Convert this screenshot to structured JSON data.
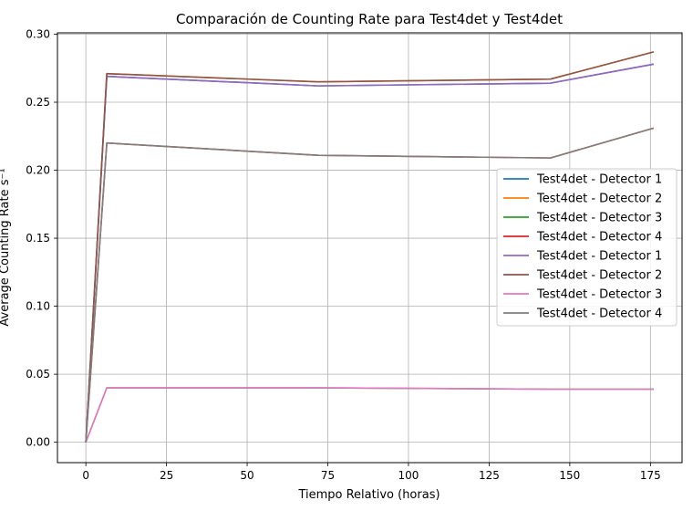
{
  "chart_data": {
    "type": "line",
    "title": "Comparación de Counting Rate para Test4det y Test4det",
    "xlabel": "Tiempo Relativo (horas)",
    "ylabel": "Average Counting Rate s⁻¹",
    "xlim": [
      -8.8,
      184.8
    ],
    "ylim": [
      -0.015,
      0.301
    ],
    "xticks": [
      0,
      25,
      50,
      75,
      100,
      125,
      150,
      175
    ],
    "xtick_labels": [
      "0",
      "25",
      "50",
      "75",
      "100",
      "125",
      "150",
      "175"
    ],
    "yticks": [
      0.0,
      0.05,
      0.1,
      0.15,
      0.2,
      0.25,
      0.3
    ],
    "ytick_labels": [
      "0.00",
      "0.05",
      "0.10",
      "0.15",
      "0.20",
      "0.25",
      "0.30"
    ],
    "grid": true,
    "legend_position": "center-right",
    "x": [
      0,
      6.5,
      72,
      144,
      176
    ],
    "series": [
      {
        "name": "Test4det - Detector 1",
        "color": "#1f77b4",
        "values": [
          0.0,
          0.269,
          0.262,
          0.264,
          0.278
        ]
      },
      {
        "name": "Test4det - Detector 2",
        "color": "#ff7f0e",
        "values": [
          0.0,
          0.271,
          0.265,
          0.267,
          0.287
        ]
      },
      {
        "name": "Test4det - Detector 3",
        "color": "#2ca02c",
        "values": [
          0.0,
          0.04,
          0.04,
          0.039,
          0.039
        ]
      },
      {
        "name": "Test4det - Detector 4",
        "color": "#d62728",
        "values": [
          0.0,
          0.22,
          0.211,
          0.209,
          0.231
        ]
      },
      {
        "name": "Test4det - Detector 1",
        "color": "#9467bd",
        "values": [
          0.0,
          0.269,
          0.262,
          0.264,
          0.278
        ]
      },
      {
        "name": "Test4det - Detector 2",
        "color": "#8c564b",
        "values": [
          0.0,
          0.271,
          0.265,
          0.267,
          0.287
        ]
      },
      {
        "name": "Test4det - Detector 3",
        "color": "#e377c2",
        "values": [
          0.0,
          0.04,
          0.04,
          0.039,
          0.039
        ]
      },
      {
        "name": "Test4det - Detector 4",
        "color": "#7f7f7f",
        "values": [
          0.0,
          0.22,
          0.211,
          0.209,
          0.231
        ]
      }
    ]
  }
}
